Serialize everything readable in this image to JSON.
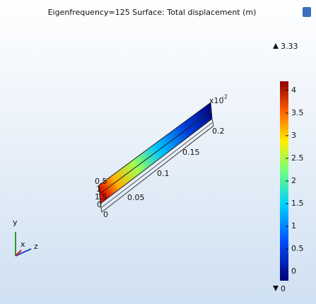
{
  "title": "Eigenfrequency=125  Surface: Total displacement (m)",
  "colorbar": {
    "max": 3.33,
    "min": 0,
    "range": [
      -0.2,
      4.2
    ],
    "ticks": [
      0,
      0.5,
      1,
      1.5,
      2,
      2.5,
      3,
      3.5,
      4
    ]
  },
  "beam_axis": {
    "exponent": "x10",
    "power": "-2",
    "x_labels": [
      "0.05",
      "0.1",
      "0.15",
      "0.2"
    ],
    "side_labels": [
      "0.5",
      "1",
      "1.5",
      "0",
      "0"
    ]
  },
  "triad": {
    "y": "y",
    "x": "x",
    "z": "z"
  }
}
